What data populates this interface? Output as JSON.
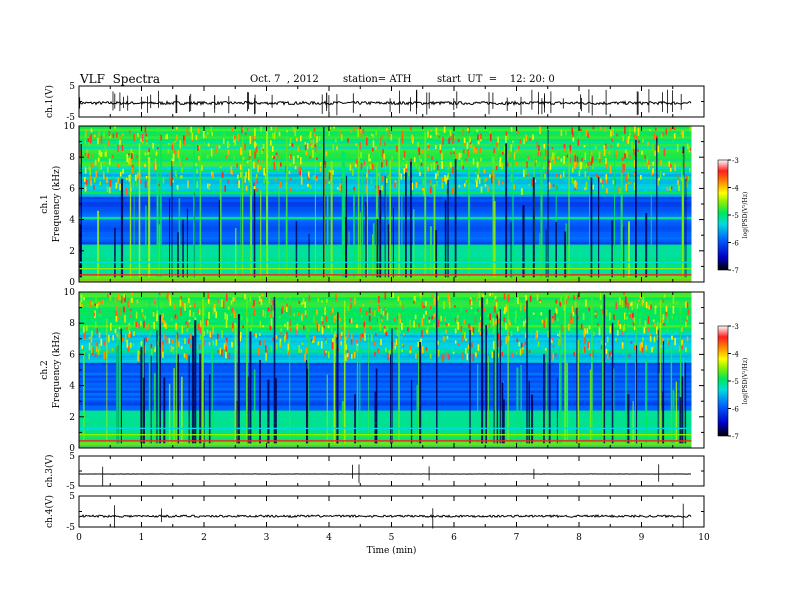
{
  "header": {
    "title": "VLF  Spectra",
    "date": "Oct. 7  , 2012",
    "station": "station= ATH",
    "start": "start  UT  =    12: 20: 0"
  },
  "chart_data": [
    {
      "type": "line",
      "ylabel": "ch.1(V)",
      "ylim": [
        -5,
        5
      ],
      "yticks": [
        5,
        -5
      ],
      "signal_level_V": -0.5,
      "xlim": [
        0,
        10
      ]
    },
    {
      "type": "heatmap",
      "ylabel_line1": "ch.1",
      "ylabel_line2": "Frequency  (kHz)",
      "ylim": [
        0,
        10
      ],
      "yticks": [
        0,
        2,
        4,
        6,
        8,
        10
      ],
      "xlim": [
        0,
        10
      ],
      "data_end_min": 9.8,
      "colorbar": {
        "label": "log(PSD(V²/Hz)",
        "range": [
          -7,
          -3
        ],
        "ticks": [
          -3,
          -4,
          -5,
          -6,
          -7
        ]
      }
    },
    {
      "type": "heatmap",
      "ylabel_line1": "ch.2",
      "ylabel_line2": "Frequency  (kHz)",
      "ylim": [
        0,
        10
      ],
      "yticks": [
        0,
        2,
        4,
        6,
        8,
        10
      ],
      "xlim": [
        0,
        10
      ],
      "data_end_min": 9.8,
      "colorbar": {
        "label": "log(PSD(V²/Hz)",
        "range": [
          -7,
          -3
        ],
        "ticks": [
          -3,
          -4,
          -5,
          -6,
          -7
        ]
      }
    },
    {
      "type": "line",
      "ylabel": "ch.3(V)",
      "ylim": [
        -5,
        5
      ],
      "yticks": [
        5,
        -5
      ],
      "signal_level_V": -1,
      "xlim": [
        0,
        10
      ]
    },
    {
      "type": "line",
      "ylabel": "ch.4(V)",
      "ylim": [
        -5,
        5
      ],
      "yticks": [
        5,
        -5
      ],
      "signal_level_V": -1.5,
      "xlim": [
        0,
        10
      ],
      "xlabel": "Time  (min)",
      "xticks": [
        0,
        1,
        2,
        3,
        4,
        5,
        6,
        7,
        8,
        9,
        10
      ]
    }
  ]
}
